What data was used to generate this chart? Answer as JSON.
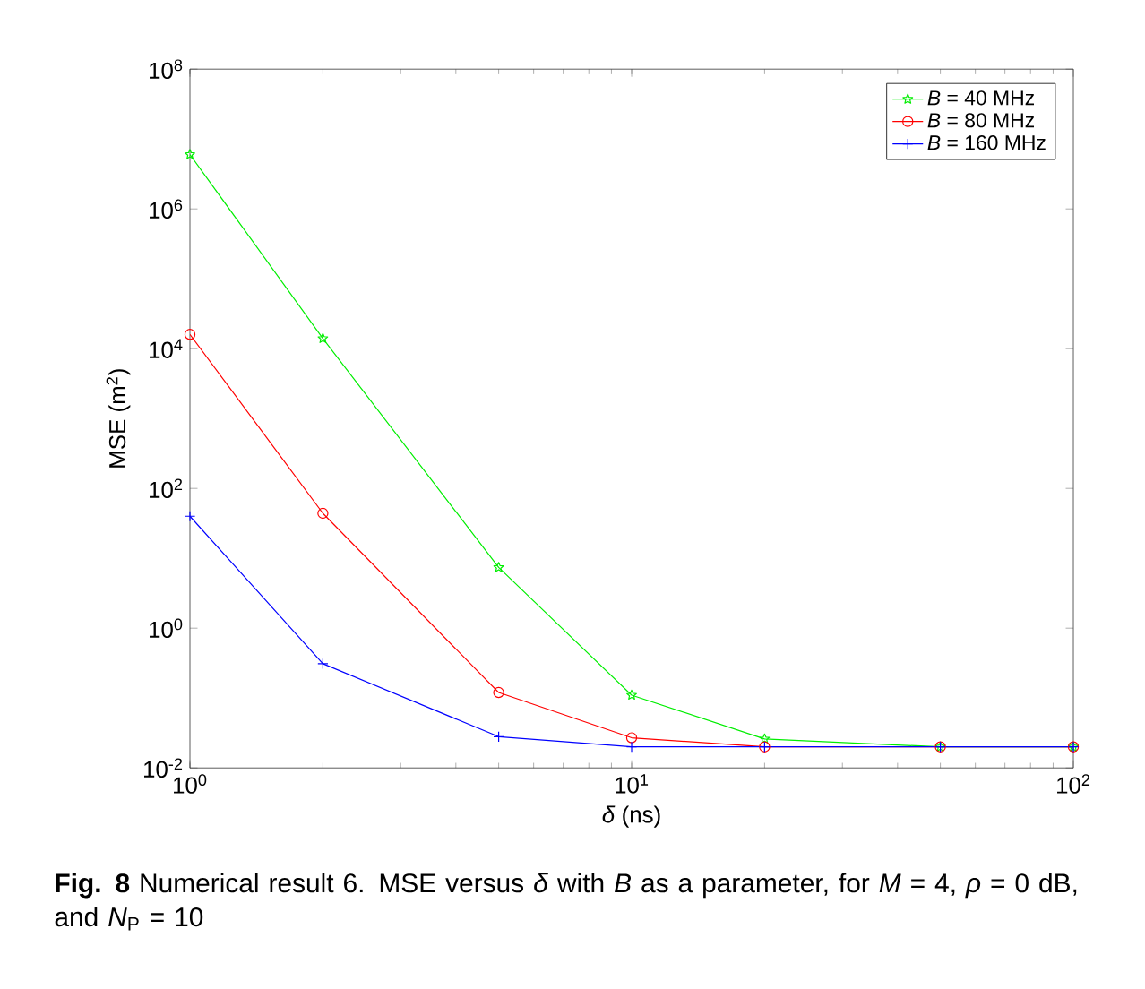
{
  "chart_data": {
    "type": "line",
    "log": "xy",
    "xlabel": "*δ* (ns)",
    "ylabel": "MSE (m$^{2}$)",
    "legend": "top right",
    "line_style": "solid",
    "xlim": [
      1,
      100
    ],
    "ylim": [
      0.01,
      100000000
    ],
    "xticks": [
      {
        "value": 1,
        "label": "10$^{0}$"
      },
      {
        "value": 10,
        "label": "10$^{1}$"
      },
      {
        "value": 100,
        "label": "10$^{2}$"
      }
    ],
    "yticks": [
      {
        "value": 0.01,
        "label": "10$^{-2}$"
      },
      {
        "value": 1,
        "label": "10$^{0}$"
      },
      {
        "value": 100,
        "label": "10$^{2}$"
      },
      {
        "value": 10000,
        "label": "10$^{4}$"
      },
      {
        "value": 1000000,
        "label": "10$^{6}$"
      },
      {
        "value": 100000000,
        "label": "10$^{8}$"
      }
    ],
    "x": [
      1,
      2,
      5,
      10,
      20,
      50,
      100
    ],
    "series": [
      {
        "name": "*B* = 40 MHz",
        "color": "#00ee00",
        "marker": "star",
        "values": [
          6000000,
          14000,
          7.4,
          0.11,
          0.026,
          0.02,
          0.02
        ]
      },
      {
        "name": "*B* = 80 MHz",
        "color": "#ff0000",
        "marker": "circle",
        "values": [
          16000,
          44,
          0.12,
          0.027,
          0.02,
          0.02,
          0.02
        ]
      },
      {
        "name": "*B* = 160 MHz",
        "color": "#0000ff",
        "marker": "cross",
        "values": [
          40,
          0.31,
          0.028,
          0.02,
          0.02,
          0.02,
          0.02
        ]
      }
    ],
    "annotations": [
      "**Fig. 8** Numerical result 6. MSE versus *δ* with *B* as a parameter, for *M* = 4, *ρ* = 0 dB, and *N*$_{P}$ = 10"
    ]
  }
}
